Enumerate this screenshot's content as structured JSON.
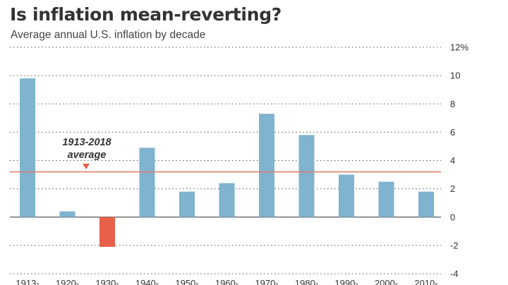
{
  "chart_data": {
    "type": "bar",
    "title": "Is inflation mean-reverting?",
    "subtitle": "Average annual U.S. inflation by decade",
    "categories": [
      "1913-",
      "1920-",
      "1930-",
      "1940-",
      "1950-",
      "1960-",
      "1970-",
      "1980-",
      "1990-",
      "2000-",
      "2010-"
    ],
    "values": [
      9.8,
      0.4,
      -2.1,
      4.9,
      1.8,
      2.4,
      7.3,
      5.8,
      3.0,
      2.5,
      1.8
    ],
    "ylim": [
      -4,
      12
    ],
    "yticks": [
      -4,
      -2,
      0,
      2,
      4,
      6,
      8,
      10,
      12
    ],
    "ytick_labels": [
      "-4",
      "-2",
      "0",
      "2",
      "4",
      "6",
      "8",
      "10",
      "12%"
    ],
    "grid": true,
    "reference_line": {
      "value": 3.2,
      "label_line1": "1913-2018",
      "label_line2": "average"
    },
    "colors": {
      "positive": "#7fb3cf",
      "negative": "#e8604a",
      "reference": "#d9826a",
      "grid": "#555555"
    }
  }
}
